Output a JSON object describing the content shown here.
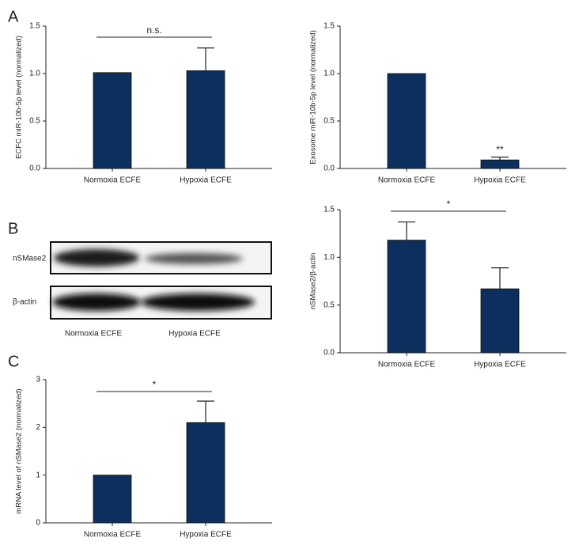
{
  "panel_labels": [
    "A",
    "B",
    "C"
  ],
  "blot": {
    "rows": [
      "nSMase2",
      "β-actin"
    ],
    "lanes": [
      "Normoxia ECFE",
      "Hypoxia ECFE"
    ]
  },
  "chart_data": [
    {
      "type": "bar",
      "ylabel": "ECFC miR-10b-5p level (normalized)",
      "categories": [
        "Normoxia ECFE",
        "Hypoxia ECFE"
      ],
      "values": [
        1.01,
        1.03
      ],
      "errors": [
        null,
        0.24
      ],
      "color": "#0d2f5e",
      "ylim": [
        0,
        1.5
      ],
      "yticks": [
        {
          "value": 0,
          "label": "0.0"
        },
        0.5,
        {
          "value": 1,
          "label": "1.0"
        },
        1.5
      ],
      "annotation": "n.s.",
      "bracket": true
    },
    {
      "type": "bar",
      "ylabel": "Exosome miR-10b-5p level (normalized)",
      "categories": [
        "Normoxia ECFE",
        "Hypoxia ECFE"
      ],
      "values": [
        1.0,
        0.09
      ],
      "errors": [
        null,
        0.03
      ],
      "color": "#0d2f5e",
      "ylim": [
        0,
        1.5
      ],
      "yticks": [
        {
          "value": 0,
          "label": "0.0"
        },
        0.5,
        {
          "value": 1,
          "label": "1.0"
        },
        1.5
      ],
      "annotation": "**",
      "bracket": false
    },
    {
      "type": "bar",
      "ylabel": "nSMase2/β-actin",
      "categories": [
        "Normoxia ECFE",
        "Hypoxia ECFE"
      ],
      "values": [
        1.18,
        0.67
      ],
      "errors": [
        0.19,
        0.22
      ],
      "color": "#0d2f5e",
      "ylim": [
        0,
        1.5
      ],
      "yticks": [
        {
          "value": 0,
          "label": "0.0"
        },
        0.5,
        {
          "value": 1,
          "label": "1.0"
        },
        1.5
      ],
      "annotation": "*",
      "bracket": true
    },
    {
      "type": "bar",
      "ylabel": "mRNA level of nSMase2 (normalized)",
      "categories": [
        "Normoxia ECFE",
        "Hypoxia ECFE"
      ],
      "values": [
        1.0,
        2.1
      ],
      "errors": [
        null,
        0.45
      ],
      "color": "#0d2f5e",
      "ylim": [
        0,
        3
      ],
      "yticks": [
        0,
        1,
        2,
        3
      ],
      "annotation": "*",
      "bracket": true
    }
  ]
}
